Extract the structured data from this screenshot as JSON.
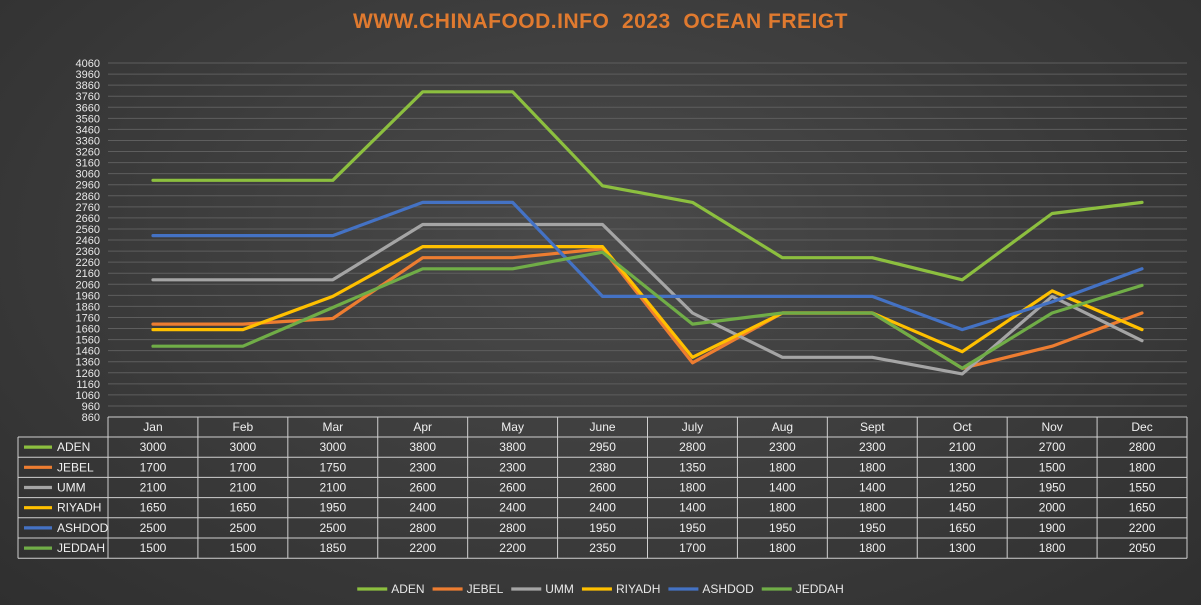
{
  "title": "WWW.CHINAFOOD.INFO  2023  OCEAN FREIGT",
  "chart_data": {
    "type": "line",
    "title": "WWW.CHINAFOOD.INFO  2023  OCEAN FREIGT",
    "categories": [
      "Jan",
      "Feb",
      "Mar",
      "Apr",
      "May",
      "June",
      "July",
      "Aug",
      "Sept",
      "Oct",
      "Nov",
      "Dec"
    ],
    "ylim": [
      860,
      4060
    ],
    "ytick_step": 100,
    "grid": true,
    "legend": "bottom",
    "data_table": true,
    "series": [
      {
        "name": "ADEN",
        "color": "#8cbf3f",
        "values": [
          3000,
          3000,
          3000,
          3800,
          3800,
          2950,
          2800,
          2300,
          2300,
          2100,
          2700,
          2800
        ]
      },
      {
        "name": "JEBEL",
        "color": "#ed7d31",
        "values": [
          1700,
          1700,
          1750,
          2300,
          2300,
          2380,
          1350,
          1800,
          1800,
          1300,
          1500,
          1800
        ]
      },
      {
        "name": "UMM",
        "color": "#a5a5a5",
        "values": [
          2100,
          2100,
          2100,
          2600,
          2600,
          2600,
          1800,
          1400,
          1400,
          1250,
          1950,
          1550
        ]
      },
      {
        "name": "RIYADH",
        "color": "#ffc000",
        "values": [
          1650,
          1650,
          1950,
          2400,
          2400,
          2400,
          1400,
          1800,
          1800,
          1450,
          2000,
          1650
        ]
      },
      {
        "name": "ASHDOD",
        "color": "#4472c4",
        "values": [
          2500,
          2500,
          2500,
          2800,
          2800,
          1950,
          1950,
          1950,
          1950,
          1650,
          1900,
          2200
        ]
      },
      {
        "name": "JEDDAH",
        "color": "#70ad47",
        "values": [
          1500,
          1500,
          1850,
          2200,
          2200,
          2350,
          1700,
          1800,
          1800,
          1300,
          1800,
          2050
        ]
      }
    ]
  }
}
